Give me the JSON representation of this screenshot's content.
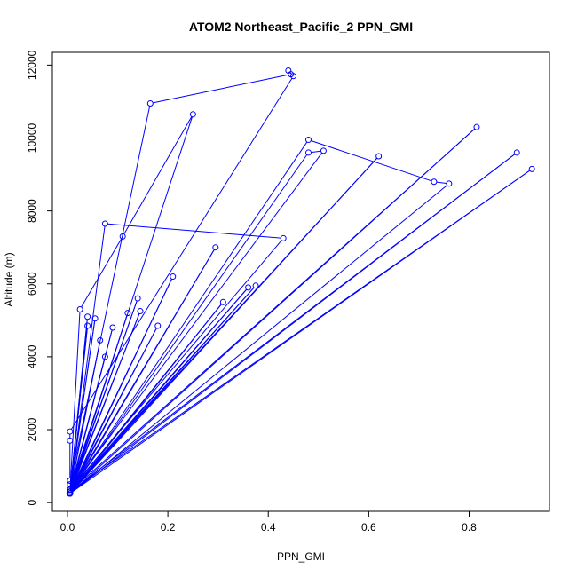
{
  "chart_data": {
    "type": "scatter",
    "title": "ATOM2 Northeast_Pacific_2 PPN_GMI",
    "xlabel": "PPN_GMI",
    "ylabel": "Altitude (m)",
    "xlim": [
      -0.03,
      0.96
    ],
    "ylim": [
      -240,
      12350
    ],
    "xticks": [
      "0.0",
      "0.2",
      "0.4",
      "0.6",
      "0.8"
    ],
    "xtick_values": [
      0,
      0.2,
      0.4,
      0.6,
      0.8
    ],
    "yticks": [
      "0",
      "2000",
      "4000",
      "6000",
      "8000",
      "10000",
      "12000"
    ],
    "ytick_values": [
      0,
      2000,
      4000,
      6000,
      8000,
      10000,
      12000
    ],
    "grid": false,
    "series": [
      {
        "color": "#0000ff",
        "x": [
          0.005,
          0.005,
          0.005,
          0.45,
          0.44,
          0.445,
          0.165,
          0.005,
          0.005,
          0.25,
          0.11,
          0.025,
          0.005,
          0.004,
          0.005,
          0.43,
          0.075,
          0.005,
          0.005,
          0.48,
          0.51,
          0.005,
          0.005,
          0.48,
          0.73,
          0.76,
          0.005,
          0.005,
          0.815,
          0.005,
          0.005,
          0.895,
          0.005,
          0.005,
          0.925,
          0.005,
          0.005,
          0.62,
          0.005,
          0.005,
          0.21,
          0.005,
          0.005,
          0.295,
          0.005,
          0.005,
          0.14,
          0.005,
          0.005,
          0.12,
          0.005,
          0.005,
          0.145,
          0.005,
          0.005,
          0.04,
          0.005,
          0.005,
          0.055,
          0.005,
          0.005,
          0.04,
          0.005,
          0.005,
          0.065,
          0.005,
          0.005,
          0.09,
          0.005,
          0.005,
          0.075,
          0.005,
          0.005,
          0.18,
          0.005,
          0.005,
          0.31,
          0.005,
          0.005,
          0.36,
          0.005,
          0.005,
          0.375,
          0.005
        ],
        "y": [
          600,
          1700,
          1950,
          11700,
          11850,
          11750,
          10950,
          500,
          350,
          10650,
          7300,
          5300,
          300,
          250,
          350,
          7250,
          7650,
          250,
          300,
          9600,
          9650,
          350,
          300,
          9950,
          8800,
          8750,
          250,
          300,
          10300,
          250,
          300,
          9600,
          250,
          300,
          9150,
          250,
          300,
          9500,
          250,
          300,
          6200,
          250,
          300,
          7000,
          250,
          300,
          5600,
          250,
          300,
          5200,
          250,
          300,
          5250,
          250,
          300,
          5100,
          250,
          300,
          5050,
          250,
          300,
          4850,
          250,
          300,
          4450,
          250,
          300,
          4800,
          250,
          300,
          4000,
          250,
          300,
          4850,
          250,
          300,
          5500,
          250,
          300,
          5900,
          250,
          300,
          5950,
          250
        ]
      }
    ]
  }
}
